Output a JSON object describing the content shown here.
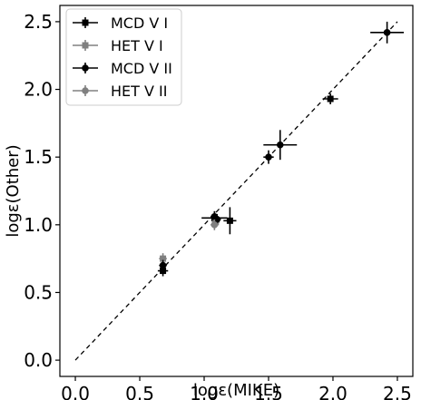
{
  "chart_data": {
    "type": "scatter",
    "xlabel": "logε(MIKE)",
    "ylabel": "logε(Other)",
    "xlim": [
      -0.12,
      2.62
    ],
    "ylim": [
      -0.12,
      2.62
    ],
    "xticks": [
      "0.0",
      "0.5",
      "1.0",
      "1.5",
      "2.0",
      "2.5"
    ],
    "yticks": [
      "0.0",
      "0.5",
      "1.0",
      "1.5",
      "2.0",
      "2.5"
    ],
    "grid": false,
    "legend_position": "top-left",
    "reference_line": {
      "style": "dashed",
      "from": [
        0.0,
        0.0
      ],
      "to": [
        2.5,
        2.5
      ],
      "color": "#000000"
    },
    "series": [
      {
        "name": "MCD V I",
        "marker": "square",
        "color": "#000000",
        "points": [
          {
            "x": 0.68,
            "y": 0.66,
            "xerr": 0.04,
            "yerr": 0.04
          },
          {
            "x": 1.08,
            "y": 1.05,
            "xerr": 0.1,
            "yerr": 0.05
          },
          {
            "x": 1.2,
            "y": 1.03,
            "xerr": 0.05,
            "yerr": 0.1
          },
          {
            "x": 1.98,
            "y": 1.93,
            "xerr": 0.06,
            "yerr": 0.04
          }
        ]
      },
      {
        "name": "HET V I",
        "marker": "square",
        "color": "#808080",
        "points": [
          {
            "x": 0.68,
            "y": 0.75,
            "xerr": 0.03,
            "yerr": 0.04
          },
          {
            "x": 1.09,
            "y": 1.02,
            "xerr": 0.03,
            "yerr": 0.04
          }
        ]
      },
      {
        "name": "MCD V II",
        "marker": "circle",
        "color": "#000000",
        "points": [
          {
            "x": 0.68,
            "y": 0.7,
            "xerr": 0.03,
            "yerr": 0.04
          },
          {
            "x": 1.08,
            "y": 1.06,
            "xerr": 0.03,
            "yerr": 0.04
          },
          {
            "x": 1.1,
            "y": 1.04,
            "xerr": 0.03,
            "yerr": 0.04
          },
          {
            "x": 1.5,
            "y": 1.5,
            "xerr": 0.04,
            "yerr": 0.05
          },
          {
            "x": 1.59,
            "y": 1.59,
            "xerr": 0.13,
            "yerr": 0.11
          },
          {
            "x": 2.42,
            "y": 2.42,
            "xerr": 0.13,
            "yerr": 0.08
          }
        ]
      },
      {
        "name": "HET V II",
        "marker": "circle",
        "color": "#808080",
        "points": [
          {
            "x": 1.08,
            "y": 1.0,
            "xerr": 0.03,
            "yerr": 0.04
          }
        ]
      }
    ]
  }
}
